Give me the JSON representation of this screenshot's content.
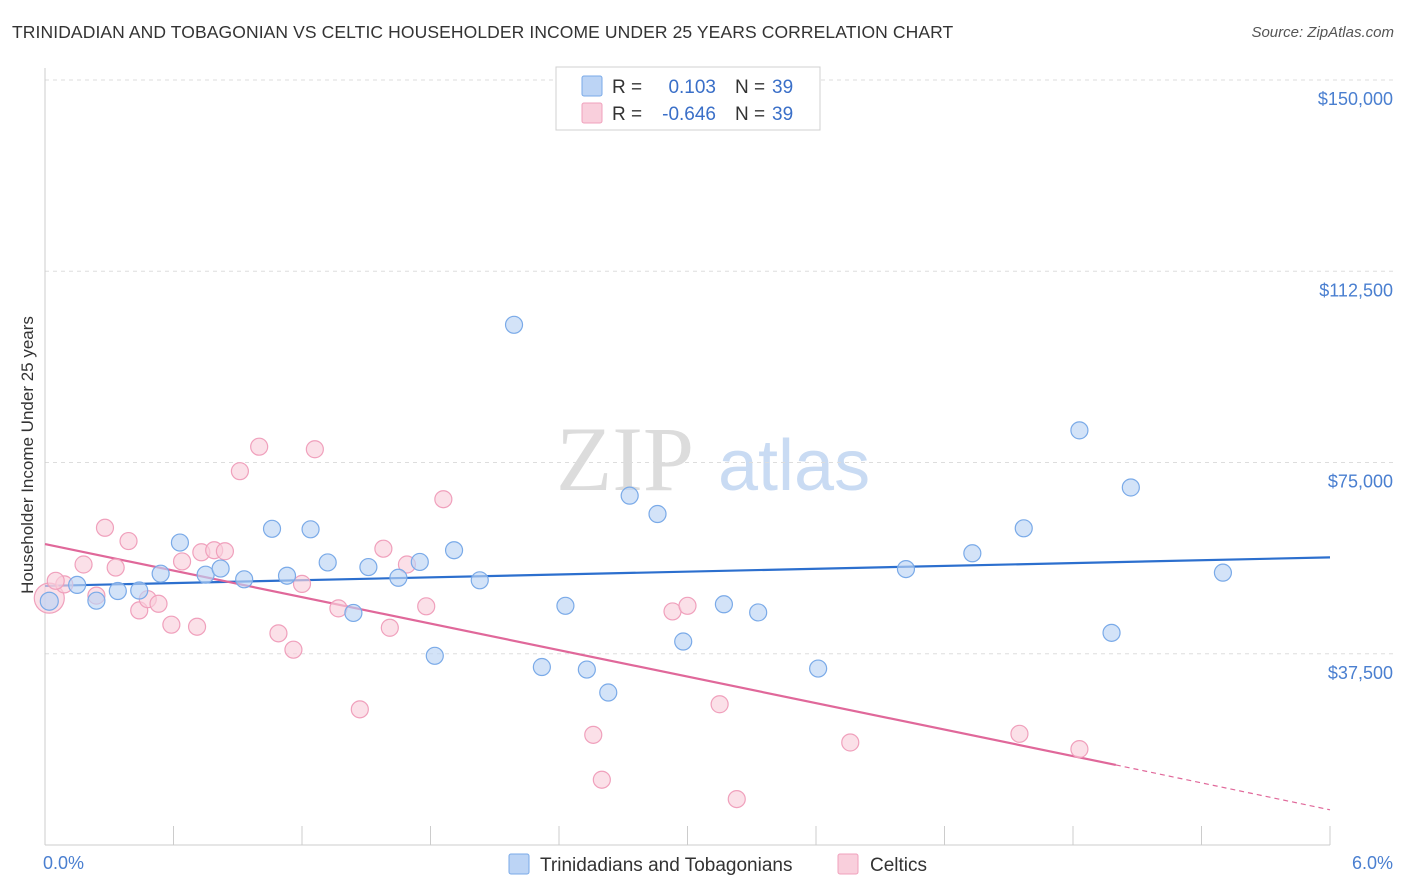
{
  "title": "TRINIDADIAN AND TOBAGONIAN VS CELTIC HOUSEHOLDER INCOME UNDER 25 YEARS CORRELATION CHART",
  "source": "Source: ZipAtlas.com",
  "watermark": {
    "zip": "ZIP",
    "atlas": "atlas"
  },
  "chart_data": {
    "type": "scatter",
    "xlabel": "",
    "ylabel": "Householder Income Under 25 years",
    "xlim": [
      0,
      6
    ],
    "ylim": [
      0,
      158000
    ],
    "x_tick_labels": {
      "min": "0.0%",
      "max": "6.0%"
    },
    "y_ticks": [
      {
        "value": 150000,
        "label": "$150,000"
      },
      {
        "value": 112500,
        "label": "$112,500"
      },
      {
        "value": 75000,
        "label": "$75,000"
      },
      {
        "value": 37500,
        "label": "$37,500"
      }
    ],
    "grid": true,
    "legend_position": "top-center",
    "series": [
      {
        "name": "Trinidadians and Tobagonians",
        "color": "#7aaae8",
        "fill": "#bcd4f5",
        "line_color": "#2c6fce",
        "R": "0.103",
        "N": "39",
        "trend": {
          "x0": 0.0,
          "y0": 50800,
          "x1": 6.0,
          "y1": 56400
        },
        "points": [
          [
            0.02,
            47800
          ],
          [
            0.15,
            51000
          ],
          [
            0.24,
            47900
          ],
          [
            0.34,
            49800
          ],
          [
            0.44,
            49900
          ],
          [
            0.54,
            53200
          ],
          [
            0.63,
            59300
          ],
          [
            0.75,
            53000
          ],
          [
            0.82,
            54200
          ],
          [
            0.93,
            52100
          ],
          [
            1.06,
            62000
          ],
          [
            1.13,
            52800
          ],
          [
            1.24,
            61900
          ],
          [
            1.32,
            55400
          ],
          [
            1.44,
            45500
          ],
          [
            1.51,
            54500
          ],
          [
            1.65,
            52400
          ],
          [
            1.75,
            55500
          ],
          [
            1.82,
            37100
          ],
          [
            1.91,
            57800
          ],
          [
            2.03,
            51900
          ],
          [
            2.19,
            102000
          ],
          [
            2.32,
            34900
          ],
          [
            2.43,
            46900
          ],
          [
            2.53,
            34400
          ],
          [
            2.63,
            29900
          ],
          [
            2.73,
            68500
          ],
          [
            2.86,
            64900
          ],
          [
            2.98,
            39900
          ],
          [
            3.17,
            47200
          ],
          [
            3.33,
            45600
          ],
          [
            3.61,
            34600
          ],
          [
            4.02,
            54100
          ],
          [
            4.33,
            57200
          ],
          [
            4.57,
            62100
          ],
          [
            4.83,
            81300
          ],
          [
            4.98,
            41600
          ],
          [
            5.07,
            70100
          ],
          [
            5.5,
            53400
          ]
        ]
      },
      {
        "name": "Celtics",
        "color": "#f0a0bc",
        "fill": "#f9cfdc",
        "line_color": "#e0689a",
        "R": "-0.646",
        "N": "39",
        "trend": {
          "x0": 0.0,
          "y0": 59000,
          "x1": 5.0,
          "y1": 15700
        },
        "trend_dashed": {
          "x0": 5.0,
          "y0": 15700,
          "x1": 6.0,
          "y1": 6900
        },
        "points": [
          [
            0.02,
            48400
          ],
          [
            0.09,
            51100
          ],
          [
            0.18,
            55000
          ],
          [
            0.24,
            48900
          ],
          [
            0.28,
            62200
          ],
          [
            0.33,
            54400
          ],
          [
            0.39,
            59600
          ],
          [
            0.44,
            46000
          ],
          [
            0.48,
            48200
          ],
          [
            0.53,
            47300
          ],
          [
            0.59,
            43200
          ],
          [
            0.64,
            55600
          ],
          [
            0.71,
            42800
          ],
          [
            0.73,
            57400
          ],
          [
            0.79,
            57800
          ],
          [
            0.84,
            57600
          ],
          [
            0.91,
            73300
          ],
          [
            1.0,
            78100
          ],
          [
            1.09,
            41500
          ],
          [
            1.16,
            38300
          ],
          [
            1.2,
            51200
          ],
          [
            1.26,
            77600
          ],
          [
            1.37,
            46400
          ],
          [
            1.47,
            26600
          ],
          [
            1.58,
            58100
          ],
          [
            1.61,
            42600
          ],
          [
            1.69,
            55000
          ],
          [
            1.78,
            46800
          ],
          [
            1.86,
            67800
          ],
          [
            2.56,
            21600
          ],
          [
            2.6,
            12800
          ],
          [
            2.93,
            45800
          ],
          [
            3.0,
            46900
          ],
          [
            3.15,
            27600
          ],
          [
            3.23,
            9000
          ],
          [
            3.76,
            20100
          ],
          [
            4.55,
            21800
          ],
          [
            4.83,
            18800
          ],
          [
            0.05,
            51800
          ]
        ]
      }
    ]
  }
}
